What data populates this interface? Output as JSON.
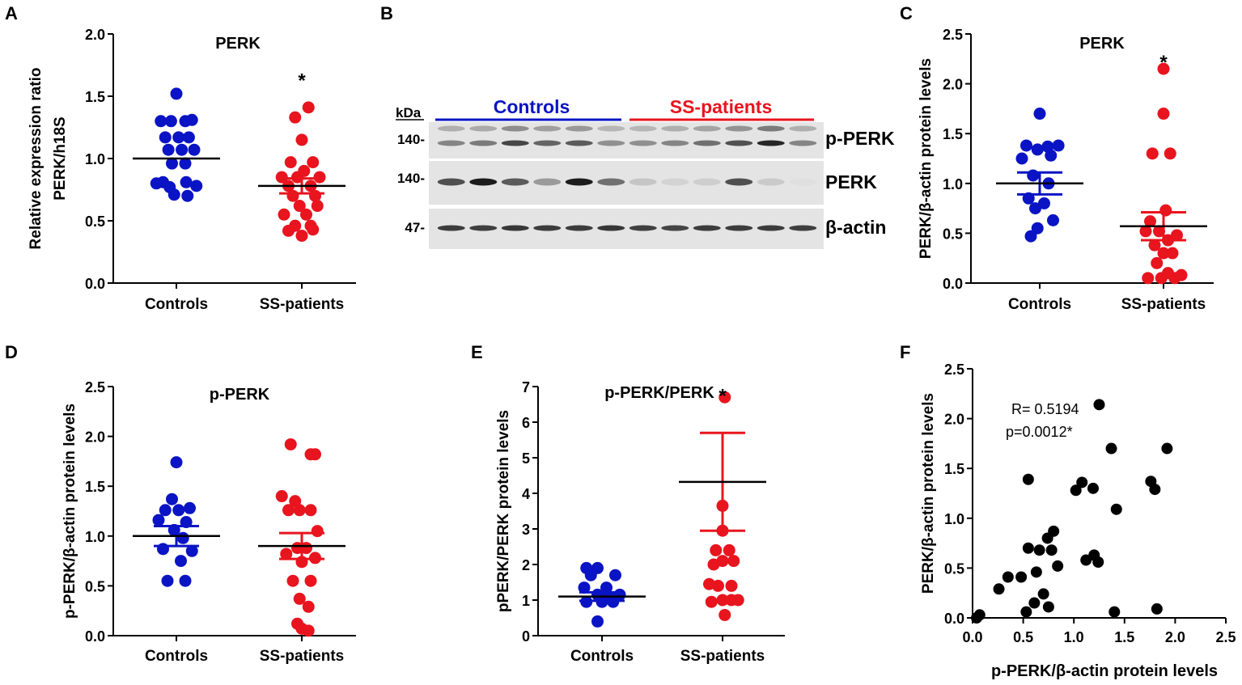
{
  "colors": {
    "controls": "#0a14c4",
    "patients": "#e8141e",
    "black": "#000000"
  },
  "chart_data": [
    {
      "id": "A",
      "type": "scatter",
      "panel_letter": "A",
      "title": "PERK",
      "ylabel_line1": "Relative expression ratio",
      "ylabel_line2": "PERK/h18S",
      "ylim": [
        0,
        2.0
      ],
      "ticks": [
        0,
        0.5,
        1.0,
        1.5,
        2.0
      ],
      "tick_labels": [
        "0.0",
        "0.5",
        "1.0",
        "1.5",
        "2.0"
      ],
      "categories": [
        "Controls",
        "SS-patients"
      ],
      "groups": [
        {
          "name": "Controls",
          "color": "controls",
          "mean": 1.0,
          "sem_low": 1.0,
          "sem_high": 1.0,
          "mean_color": "black",
          "err_color": "black",
          "points": [
            [
              0,
              1.52
            ],
            [
              -0.35,
              1.3
            ],
            [
              -0.12,
              1.3
            ],
            [
              0.2,
              1.3
            ],
            [
              0.35,
              1.31
            ],
            [
              -0.25,
              1.17
            ],
            [
              0.05,
              1.17
            ],
            [
              0.28,
              1.17
            ],
            [
              -0.18,
              1.07
            ],
            [
              0.12,
              1.07
            ],
            [
              0.4,
              1.07
            ],
            [
              -0.1,
              0.96
            ],
            [
              0.2,
              0.96
            ],
            [
              -0.3,
              0.81
            ],
            [
              0.22,
              0.81
            ],
            [
              -0.45,
              0.8
            ],
            [
              0.45,
              0.78
            ],
            [
              -0.15,
              0.77
            ],
            [
              -0.05,
              0.71
            ],
            [
              0.25,
              0.7
            ]
          ]
        },
        {
          "name": "SS-patients",
          "color": "patients",
          "mean": 0.78,
          "sem_low": 0.72,
          "sem_high": 0.84,
          "mean_color": "black",
          "err_color": "patients",
          "points": [
            [
              0.15,
              1.41
            ],
            [
              -0.15,
              1.33
            ],
            [
              0.0,
              1.15
            ],
            [
              -0.25,
              0.97
            ],
            [
              0.25,
              0.97
            ],
            [
              0.05,
              0.9
            ],
            [
              -0.45,
              0.85
            ],
            [
              -0.1,
              0.85
            ],
            [
              0.4,
              0.85
            ],
            [
              -0.3,
              0.78
            ],
            [
              0.2,
              0.78
            ],
            [
              -0.2,
              0.7
            ],
            [
              0.3,
              0.7
            ],
            [
              -0.05,
              0.62
            ],
            [
              0.35,
              0.62
            ],
            [
              -0.4,
              0.55
            ],
            [
              0.1,
              0.55
            ],
            [
              -0.15,
              0.46
            ],
            [
              0.2,
              0.46
            ],
            [
              -0.3,
              0.42
            ],
            [
              0.25,
              0.43
            ],
            [
              0.0,
              0.38
            ]
          ]
        }
      ],
      "annotations": [
        {
          "text": "*",
          "group": 1,
          "y": 1.68
        }
      ]
    },
    {
      "id": "C",
      "type": "scatter",
      "panel_letter": "C",
      "title": "PERK",
      "ylabel_line1": "PERK/β-actin protein levels",
      "ylabel_line2": "",
      "ylim": [
        0,
        2.5
      ],
      "ticks": [
        0,
        0.5,
        1.0,
        1.5,
        2.0,
        2.5
      ],
      "tick_labels": [
        "0.0",
        "0.5",
        "1.0",
        "1.5",
        "2.0",
        "2.5"
      ],
      "categories": [
        "Controls",
        "SS-patients"
      ],
      "groups": [
        {
          "name": "Controls",
          "color": "controls",
          "mean": 1.0,
          "sem_low": 0.89,
          "sem_high": 1.11,
          "mean_color": "black",
          "err_color": "controls",
          "points": [
            [
              0,
              1.7
            ],
            [
              -0.3,
              1.38
            ],
            [
              -0.05,
              1.34
            ],
            [
              0.18,
              1.37
            ],
            [
              0.42,
              1.38
            ],
            [
              -0.4,
              1.25
            ],
            [
              0.25,
              1.28
            ],
            [
              -0.15,
              1.08
            ],
            [
              0.2,
              1.0
            ],
            [
              -0.25,
              0.85
            ],
            [
              0.1,
              0.8
            ],
            [
              -0.1,
              0.75
            ],
            [
              0.3,
              0.63
            ],
            [
              -0.05,
              0.55
            ],
            [
              -0.2,
              0.47
            ]
          ]
        },
        {
          "name": "SS-patients",
          "color": "patients",
          "mean": 0.57,
          "sem_low": 0.43,
          "sem_high": 0.71,
          "mean_color": "black",
          "err_color": "patients",
          "points": [
            [
              0,
              2.15
            ],
            [
              0,
              1.7
            ],
            [
              -0.25,
              1.3
            ],
            [
              0.15,
              1.3
            ],
            [
              -0.3,
              0.62
            ],
            [
              0.05,
              0.73
            ],
            [
              -0.4,
              0.52
            ],
            [
              -0.1,
              0.52
            ],
            [
              0.1,
              0.43
            ],
            [
              0.3,
              0.48
            ],
            [
              -0.2,
              0.38
            ],
            [
              0.0,
              0.3
            ],
            [
              0.2,
              0.3
            ],
            [
              -0.15,
              0.2
            ],
            [
              -0.35,
              0.05
            ],
            [
              -0.05,
              0.05
            ],
            [
              0.25,
              0.05
            ],
            [
              0.4,
              0.08
            ],
            [
              0.1,
              0.1
            ]
          ]
        }
      ],
      "annotations": [
        {
          "text": "*",
          "group": 1,
          "y": 2.28
        }
      ]
    },
    {
      "id": "D",
      "type": "scatter",
      "panel_letter": "D",
      "title": "p-PERK",
      "ylabel_line1": "p-PERK/β-actin protein levels",
      "ylabel_line2": "",
      "ylim": [
        0,
        2.5
      ],
      "ticks": [
        0,
        0.5,
        1.0,
        1.5,
        2.0,
        2.5
      ],
      "tick_labels": [
        "0.0",
        "0.5",
        "1.0",
        "1.5",
        "2.0",
        "2.5"
      ],
      "categories": [
        "Controls",
        "SS-patients"
      ],
      "groups": [
        {
          "name": "Controls",
          "color": "controls",
          "mean": 1.0,
          "sem_low": 0.9,
          "sem_high": 1.1,
          "mean_color": "black",
          "err_color": "controls",
          "points": [
            [
              0,
              1.74
            ],
            [
              -0.1,
              1.37
            ],
            [
              -0.25,
              1.26
            ],
            [
              0.05,
              1.26
            ],
            [
              0.3,
              1.28
            ],
            [
              -0.4,
              1.16
            ],
            [
              0.22,
              1.14
            ],
            [
              -0.05,
              1.06
            ],
            [
              0.15,
              0.98
            ],
            [
              -0.3,
              0.87
            ],
            [
              0.35,
              0.85
            ],
            [
              0.1,
              0.75
            ],
            [
              -0.2,
              0.55
            ],
            [
              0.2,
              0.55
            ]
          ]
        },
        {
          "name": "SS-patients",
          "color": "patients",
          "mean": 0.9,
          "sem_low": 0.77,
          "sem_high": 1.03,
          "mean_color": "black",
          "err_color": "patients",
          "points": [
            [
              -0.25,
              1.92
            ],
            [
              0.2,
              1.82
            ],
            [
              0.3,
              1.82
            ],
            [
              -0.45,
              1.4
            ],
            [
              -0.15,
              1.35
            ],
            [
              -0.05,
              1.26
            ],
            [
              0.2,
              1.26
            ],
            [
              -0.3,
              1.26
            ],
            [
              0.35,
              1.05
            ],
            [
              -0.1,
              0.88
            ],
            [
              0.1,
              0.88
            ],
            [
              -0.35,
              0.82
            ],
            [
              0.3,
              0.78
            ],
            [
              0.0,
              0.74
            ],
            [
              -0.2,
              0.55
            ],
            [
              0.2,
              0.55
            ],
            [
              -0.05,
              0.37
            ],
            [
              0.15,
              0.29
            ],
            [
              -0.1,
              0.12
            ],
            [
              0.0,
              0.07
            ],
            [
              0.15,
              0.05
            ]
          ]
        }
      ],
      "annotations": []
    },
    {
      "id": "E",
      "type": "scatter",
      "panel_letter": "E",
      "title": "p-PERK/PERK",
      "ylabel_line1": "pPERK/PERK protein levels",
      "ylabel_line2": "",
      "ylim": [
        0,
        7
      ],
      "ticks": [
        0,
        1,
        2,
        3,
        4,
        5,
        6,
        7
      ],
      "tick_labels": [
        "0",
        "1",
        "2",
        "3",
        "4",
        "5",
        "6",
        "7"
      ],
      "categories": [
        "Controls",
        "SS-patients"
      ],
      "groups": [
        {
          "name": "Controls",
          "color": "controls",
          "mean": 1.1,
          "sem_low": 0.98,
          "sem_high": 1.22,
          "mean_color": "black",
          "err_color": "controls",
          "points": [
            [
              -0.35,
              1.9
            ],
            [
              -0.1,
              1.9
            ],
            [
              -0.25,
              1.7
            ],
            [
              0.3,
              1.7
            ],
            [
              -0.4,
              1.35
            ],
            [
              0.1,
              1.35
            ],
            [
              -0.1,
              1.15
            ],
            [
              0.15,
              1.1
            ],
            [
              0.4,
              1.15
            ],
            [
              -0.35,
              0.95
            ],
            [
              0.0,
              0.95
            ],
            [
              0.25,
              0.95
            ],
            [
              -0.1,
              0.4
            ]
          ]
        },
        {
          "name": "SS-patients",
          "color": "patients",
          "mean": 4.32,
          "sem_low": 2.95,
          "sem_high": 5.7,
          "mean_color": "black",
          "err_color": "patients",
          "points": [
            [
              0.05,
              6.7
            ],
            [
              0.0,
              3.65
            ],
            [
              0.0,
              2.95
            ],
            [
              -0.15,
              2.4
            ],
            [
              0.15,
              2.4
            ],
            [
              -0.2,
              2.0
            ],
            [
              0.0,
              2.1
            ],
            [
              0.25,
              2.1
            ],
            [
              -0.3,
              1.45
            ],
            [
              -0.1,
              1.4
            ],
            [
              0.2,
              1.4
            ],
            [
              -0.25,
              0.95
            ],
            [
              0.0,
              1.0
            ],
            [
              0.2,
              1.0
            ],
            [
              0.35,
              1.0
            ],
            [
              0.05,
              0.58
            ]
          ]
        }
      ],
      "annotations": [
        {
          "text": "*",
          "group": 1,
          "y": 6.92
        }
      ]
    },
    {
      "id": "F",
      "type": "scatter",
      "panel_letter": "F",
      "xlabel": "p-PERK/β-actin protein levels",
      "ylabel": "PERK/β-actin protein levels",
      "xlim": [
        0,
        2.5
      ],
      "ylim": [
        0,
        2.5
      ],
      "xticks": [
        0,
        0.5,
        1.0,
        1.5,
        2.0,
        2.5
      ],
      "yticks": [
        0,
        0.5,
        1.0,
        1.5,
        2.0,
        2.5
      ],
      "tick_labels": [
        "0.0",
        "0.5",
        "1.0",
        "1.5",
        "2.0",
        "2.5"
      ],
      "stat_r": "R= 0.5194",
      "stat_p": "p=0.0012*",
      "points": [
        [
          0.04,
          0.0
        ],
        [
          0.07,
          0.03
        ],
        [
          0.26,
          0.29
        ],
        [
          0.35,
          0.41
        ],
        [
          0.48,
          0.41
        ],
        [
          0.53,
          0.06
        ],
        [
          0.55,
          0.7
        ],
        [
          0.55,
          1.39
        ],
        [
          0.61,
          0.15
        ],
        [
          0.63,
          0.46
        ],
        [
          0.66,
          0.68
        ],
        [
          0.7,
          0.24
        ],
        [
          0.74,
          0.8
        ],
        [
          0.75,
          0.11
        ],
        [
          0.78,
          0.68
        ],
        [
          0.8,
          0.87
        ],
        [
          0.84,
          0.52
        ],
        [
          1.02,
          1.28
        ],
        [
          1.08,
          1.36
        ],
        [
          1.12,
          0.58
        ],
        [
          1.19,
          1.3
        ],
        [
          1.2,
          0.63
        ],
        [
          1.24,
          0.56
        ],
        [
          1.25,
          2.14
        ],
        [
          1.37,
          1.7
        ],
        [
          1.4,
          0.06
        ],
        [
          1.42,
          1.09
        ],
        [
          1.76,
          1.37
        ],
        [
          1.8,
          1.29
        ],
        [
          1.82,
          0.09
        ],
        [
          1.92,
          1.7
        ]
      ]
    }
  ],
  "blot": {
    "panel_letter": "B",
    "kda_label": "kDa",
    "group_labels": [
      "Controls",
      "SS-patients"
    ],
    "rows": [
      {
        "marker": "140-",
        "label": "p-PERK",
        "intensities": [
          0.45,
          0.5,
          0.75,
          0.6,
          0.65,
          0.4,
          0.4,
          0.45,
          0.55,
          0.7,
          0.9,
          0.45
        ]
      },
      {
        "marker": "140-",
        "label": "PERK",
        "intensities": [
          0.7,
          0.95,
          0.65,
          0.35,
          0.95,
          0.55,
          0.15,
          0.08,
          0.1,
          0.7,
          0.12,
          0.02
        ]
      },
      {
        "marker": "47-",
        "label": "β-actin",
        "intensities": [
          0.8,
          0.78,
          0.82,
          0.8,
          0.8,
          0.82,
          0.78,
          0.76,
          0.8,
          0.8,
          0.8,
          0.78
        ]
      }
    ]
  }
}
